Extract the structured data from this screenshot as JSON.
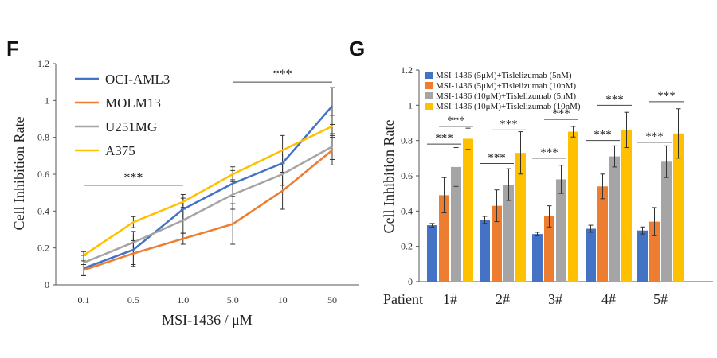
{
  "chart_data": [
    {
      "panel_letter": "F",
      "type": "line",
      "xlabel": "MSI-1436 / μM",
      "ylabel": "Cell Inhibition Rate",
      "x": [
        "0.1",
        "0.5",
        "1.0",
        "5.0",
        "10",
        "50"
      ],
      "ylim": [
        0,
        1.2
      ],
      "yticks": [
        "0",
        "0.2",
        "0.4",
        "0.6",
        "0.8",
        "1",
        "1.2"
      ],
      "grid": false,
      "legend_position": "top-left",
      "series": [
        {
          "name": "OCI-AML3",
          "color": "#4472c4",
          "values": [
            0.09,
            0.19,
            0.41,
            0.55,
            0.66,
            0.97
          ],
          "errors": [
            0.04,
            0.08,
            0.06,
            0.07,
            0.05,
            0.1
          ]
        },
        {
          "name": "MOLM13",
          "color": "#ed7d31",
          "values": [
            0.08,
            0.17,
            0.25,
            0.33,
            0.51,
            0.73
          ],
          "errors": [
            0.03,
            0.07,
            0.03,
            0.11,
            0.1,
            0.08
          ]
        },
        {
          "name": "U251MG",
          "color": "#a5a5a5",
          "values": [
            0.12,
            0.23,
            0.35,
            0.49,
            0.6,
            0.75
          ],
          "errors": [
            0.04,
            0.06,
            0.07,
            0.08,
            0.06,
            0.07
          ]
        },
        {
          "name": "A375",
          "color": "#ffc000",
          "values": [
            0.16,
            0.34,
            0.45,
            0.6,
            0.73,
            0.86
          ],
          "errors": [
            0.02,
            0.03,
            0.04,
            0.04,
            0.08,
            0.06
          ]
        }
      ],
      "annotations": [
        {
          "text": "***",
          "from": "0.1",
          "to": "1.0",
          "y": 0.54
        },
        {
          "text": "***",
          "from": "5.0",
          "to": "50",
          "y": 1.1
        }
      ]
    },
    {
      "panel_letter": "G",
      "type": "bar",
      "xlabel": "Patient",
      "ylabel": "Cell Inhibition Rate",
      "categories": [
        "1#",
        "2#",
        "3#",
        "4#",
        "5#"
      ],
      "ylim": [
        0,
        1.2
      ],
      "yticks": [
        "0",
        "0.2",
        "0.4",
        "0.6",
        "0.8",
        "1",
        "1.2"
      ],
      "grid": false,
      "legend_position": "top-left",
      "series": [
        {
          "name": "MSI-1436 (5μM)+Tislelizumab (5nM)",
          "color": "#4472c4",
          "values": [
            0.32,
            0.35,
            0.27,
            0.3,
            0.29
          ],
          "errors": [
            0.01,
            0.02,
            0.01,
            0.02,
            0.02
          ]
        },
        {
          "name": "MSI-1436 (5μM)+Tislelizumab (10nM)",
          "color": "#ed7d31",
          "values": [
            0.49,
            0.43,
            0.37,
            0.54,
            0.34
          ],
          "errors": [
            0.1,
            0.09,
            0.06,
            0.07,
            0.08
          ]
        },
        {
          "name": "MSI-1436 (10μM)+Tislelizumab (5nM)",
          "color": "#a5a5a5",
          "values": [
            0.65,
            0.55,
            0.58,
            0.71,
            0.68
          ],
          "errors": [
            0.11,
            0.09,
            0.08,
            0.06,
            0.09
          ]
        },
        {
          "name": "MSI-1436 (10μM)+Tislelizumab (10nM)",
          "color": "#ffc000",
          "values": [
            0.81,
            0.73,
            0.85,
            0.86,
            0.84
          ],
          "errors": [
            0.06,
            0.12,
            0.03,
            0.1,
            0.14
          ]
        }
      ],
      "annotations": [
        {
          "text": "***",
          "category": "1#",
          "from_series": 0,
          "to_series": 2,
          "y": 0.78
        },
        {
          "text": "***",
          "category": "1#",
          "from_series": 1,
          "to_series": 3,
          "y": 0.88
        },
        {
          "text": "***",
          "category": "2#",
          "from_series": 0,
          "to_series": 2,
          "y": 0.67
        },
        {
          "text": "***",
          "category": "2#",
          "from_series": 1,
          "to_series": 3,
          "y": 0.86
        },
        {
          "text": "***",
          "category": "3#",
          "from_series": 0,
          "to_series": 2,
          "y": 0.7
        },
        {
          "text": "***",
          "category": "3#",
          "from_series": 1,
          "to_series": 3,
          "y": 0.92
        },
        {
          "text": "***",
          "category": "4#",
          "from_series": 0,
          "to_series": 2,
          "y": 0.8
        },
        {
          "text": "***",
          "category": "4#",
          "from_series": 1,
          "to_series": 3,
          "y": 1.0
        },
        {
          "text": "***",
          "category": "5#",
          "from_series": 0,
          "to_series": 2,
          "y": 0.79
        },
        {
          "text": "***",
          "category": "5#",
          "from_series": 1,
          "to_series": 3,
          "y": 1.02
        }
      ]
    }
  ]
}
